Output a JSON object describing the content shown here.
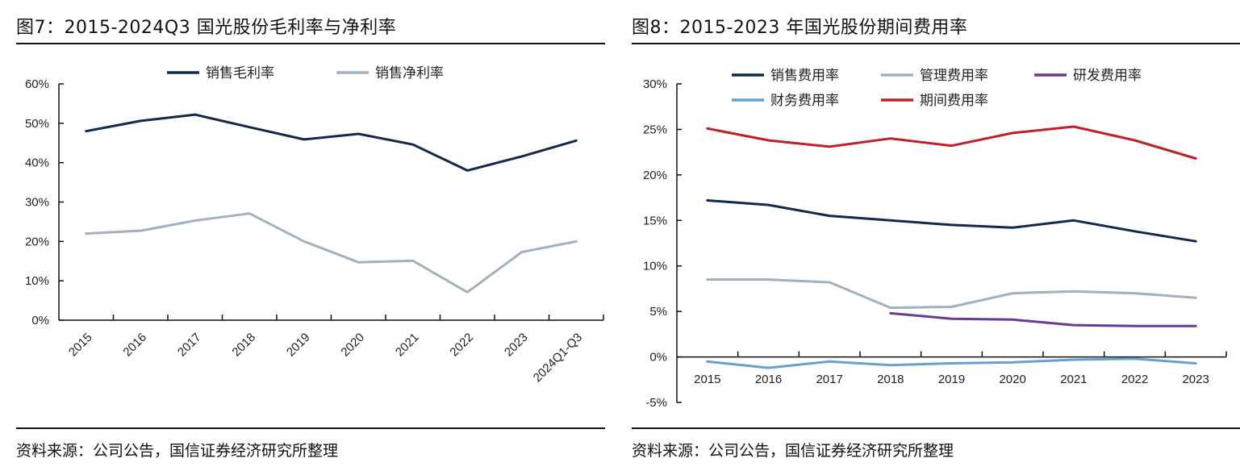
{
  "figures": [
    {
      "title": "图7：2015-2024Q3 国光股份毛利率与净利率",
      "source": "资料来源：公司公告，国信证券经济研究所整理"
    },
    {
      "title": "图8：2015-2023 年国光股份期间费用率",
      "source": "资料来源：公司公告，国信证券经济研究所整理"
    }
  ],
  "chart_data": [
    {
      "type": "line",
      "title": "图7：2015-2024Q3 国光股份毛利率与净利率",
      "xlabel": "",
      "ylabel": "",
      "categories": [
        "2015",
        "2016",
        "2017",
        "2018",
        "2019",
        "2020",
        "2021",
        "2022",
        "2023",
        "2024Q1-Q3"
      ],
      "series": [
        {
          "name": "销售毛利率",
          "color": "#0f2a4a",
          "values": [
            48.0,
            50.6,
            52.2,
            49.0,
            45.9,
            47.3,
            44.6,
            38.0,
            41.6,
            45.6
          ]
        },
        {
          "name": "销售净利率",
          "color": "#a3b1bf",
          "values": [
            22.0,
            22.7,
            25.3,
            27.1,
            20.0,
            14.7,
            15.1,
            7.1,
            17.3,
            20.0
          ]
        }
      ],
      "ylim": [
        0,
        60
      ],
      "yticks": [
        "0%",
        "10%",
        "20%",
        "30%",
        "40%",
        "50%",
        "60%"
      ],
      "yunit": "%",
      "x_tick_rotation": "-45deg",
      "legend": "top-center",
      "grid": false
    },
    {
      "type": "line",
      "title": "图8：2015-2023 年国光股份期间费用率",
      "xlabel": "",
      "ylabel": "",
      "categories": [
        "2015",
        "2016",
        "2017",
        "2018",
        "2019",
        "2020",
        "2021",
        "2022",
        "2023"
      ],
      "series": [
        {
          "name": "销售费用率",
          "color": "#0f2a4a",
          "values": [
            17.2,
            16.7,
            15.5,
            15.0,
            14.5,
            14.2,
            15.0,
            13.8,
            12.7
          ]
        },
        {
          "name": "管理费用率",
          "color": "#a3b1bf",
          "values": [
            8.5,
            8.5,
            8.2,
            5.4,
            5.5,
            7.0,
            7.2,
            7.0,
            6.5
          ]
        },
        {
          "name": "研发费用率",
          "color": "#6b3a96",
          "values": [
            null,
            null,
            null,
            4.8,
            4.2,
            4.1,
            3.5,
            3.4,
            3.4
          ]
        },
        {
          "name": "财务费用率",
          "color": "#6a9fd0",
          "values": [
            -0.5,
            -1.2,
            -0.5,
            -0.9,
            -0.7,
            -0.6,
            -0.3,
            -0.2,
            -0.7
          ]
        },
        {
          "name": "期间费用率",
          "color": "#c0202a",
          "values": [
            25.1,
            23.8,
            23.1,
            24.0,
            23.2,
            24.6,
            25.3,
            23.8,
            21.8
          ]
        }
      ],
      "ylim": [
        -5,
        30
      ],
      "yticks": [
        "-5%",
        "0%",
        "5%",
        "10%",
        "15%",
        "20%",
        "25%",
        "30%"
      ],
      "yunit": "%",
      "legend": "top (two rows)",
      "grid": false
    }
  ]
}
